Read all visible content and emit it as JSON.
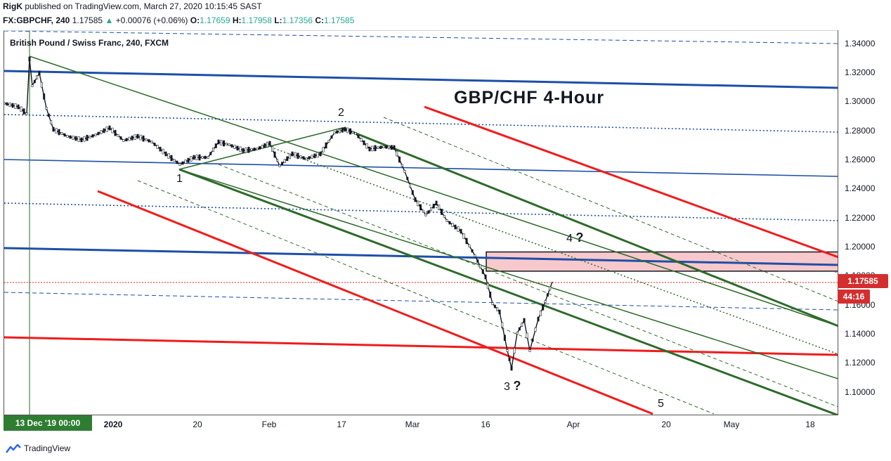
{
  "header": {
    "author": "RigK",
    "published_text": "published on TradingView.com, March 27, 2020 10:15:45 SAST"
  },
  "symbol_line": {
    "symbol": "FX:GBPCHF, 240",
    "last": "1.17585",
    "arrow": "▲",
    "change": "+0.00076 (+0.06%)",
    "o_label": "O:",
    "o": "1.17659",
    "h_label": "H:",
    "h": "1.17958",
    "l_label": "L:",
    "l": "1.17356",
    "c_label": "C:",
    "c": "1.17585"
  },
  "legend": "British Pound / Swiss Franc, 240, FXCM",
  "annotation_title": "GBP/CHF 4-Hour",
  "badges": {
    "date": "13 Dec '19   00:00",
    "price": "1.17585",
    "countdown": "44:16"
  },
  "footer": {
    "brand": "TradingView",
    "logo_icon": "tradingview-logo-icon"
  },
  "waves": [
    {
      "label": "1",
      "q": ""
    },
    {
      "label": "2",
      "q": ""
    },
    {
      "label": "3",
      "q": "?"
    },
    {
      "label": "4",
      "q": "?"
    },
    {
      "label": "5",
      "q": ""
    }
  ],
  "colors": {
    "up": "#26a69a",
    "blue": "#1e4fa8",
    "red": "#f01c1c",
    "green": "#2e6b2a",
    "zone_fill": "#f8c9cc"
  },
  "chart_data": {
    "type": "candlestick",
    "title": "GBP/CHF 4-Hour",
    "xlabel": "",
    "ylabel": "",
    "x_ticks": [
      "2020",
      "20",
      "Feb",
      "17",
      "Mar",
      "16",
      "Apr",
      "20",
      "May",
      "18"
    ],
    "y_ticks": [
      "1.34000",
      "1.32000",
      "1.30000",
      "1.28000",
      "1.26000",
      "1.24000",
      "1.22000",
      "1.20000",
      "1.18000",
      "1.16000",
      "1.14000",
      "1.12000",
      "1.10000"
    ],
    "ylim": [
      1.0875,
      1.3475
    ],
    "key_points": [
      {
        "date": "2019-12-13",
        "price": 1.305,
        "note": "spike high"
      },
      {
        "date": "2020-01-16",
        "price": 1.253,
        "wave": "1"
      },
      {
        "date": "2020-02-17",
        "price": 1.283,
        "wave": "2"
      },
      {
        "date": "2020-03-18",
        "price": 1.115,
        "wave": "3 ?"
      },
      {
        "date": "2020-03-26",
        "price": 1.17585,
        "note": "last close"
      }
    ],
    "resistance_zone": {
      "from_date": "2020-03-16",
      "low": 1.185,
      "high": 1.198
    },
    "last_price": 1.17585
  }
}
